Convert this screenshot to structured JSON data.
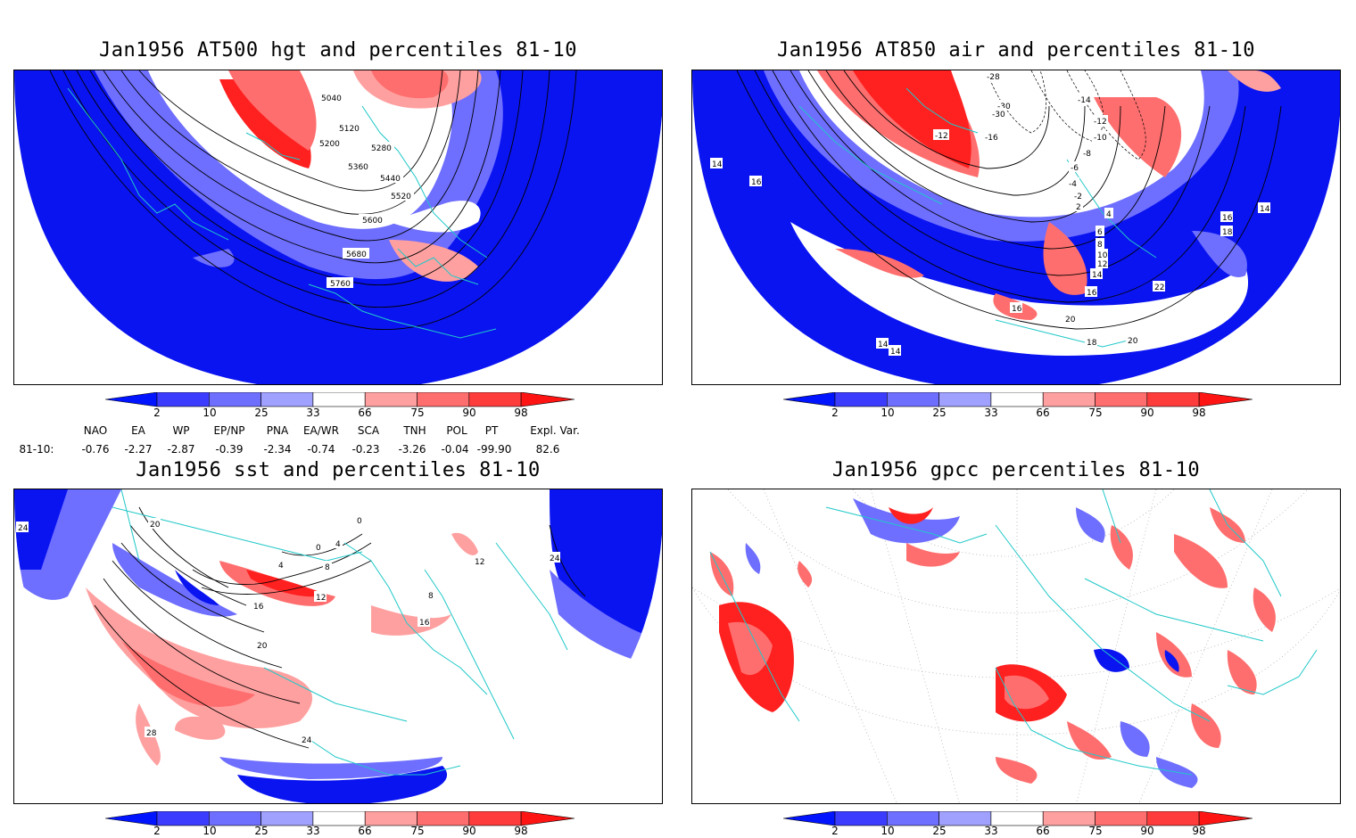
{
  "panels": [
    {
      "title": "Jan1956 AT500 hgt and percentiles 81-10",
      "contour_labels": [
        "5040",
        "5120",
        "5200",
        "5280",
        "5360",
        "5440",
        "5520",
        "5600",
        "5680",
        "5760"
      ]
    },
    {
      "title": "Jan1956 AT850 air and percentiles 81-10",
      "contour_labels": [
        "-28",
        "-30",
        "-30",
        "-14",
        "-12",
        "-12",
        "-16",
        "-10",
        "-8",
        "-6",
        "-4",
        "-2",
        "2",
        "4",
        "6",
        "8",
        "10",
        "12",
        "14",
        "16",
        "20",
        "22",
        "16",
        "18",
        "20",
        "14",
        "14",
        "16",
        "18",
        "14",
        "14",
        "16"
      ]
    },
    {
      "title": "Jan1956 sst and percentiles 81-10",
      "contour_labels": [
        "24",
        "20",
        "0",
        "4",
        "0",
        "4",
        "8",
        "12",
        "16",
        "20",
        "24",
        "28",
        "12",
        "16",
        "24",
        "8"
      ]
    },
    {
      "title": "Jan1956 gpcc percentiles 81-10",
      "contour_labels": []
    }
  ],
  "colorbar": {
    "labels": [
      "2",
      "10",
      "25",
      "33",
      "66",
      "75",
      "90",
      "98"
    ],
    "colors": [
      "#0014ff",
      "#3c3cff",
      "#6e6eff",
      "#a0a0ff",
      "#ffffff",
      "#ffa0a0",
      "#ff6e6e",
      "#ff3c3c",
      "#ff1414"
    ]
  },
  "indices": {
    "names": [
      "NAO",
      "EA",
      "WP",
      "EP/NP",
      "PNA",
      "EA/WR",
      "SCA",
      "TNH",
      "POL",
      "PT",
      "Expl. Var."
    ],
    "row_label": "81-10:",
    "values": [
      "-0.76",
      "-2.27",
      "-2.87",
      "-0.39",
      "-2.34",
      "-0.74",
      "-0.23",
      "-3.26",
      "-0.04",
      "-99.90",
      "82.6"
    ]
  },
  "map_colors": {
    "coast": "#20c8c8",
    "deep_blue": "#0a14f0",
    "light_blue": "#9aa0ff",
    "red": "#ff2020",
    "pink": "#ffa0a0"
  }
}
